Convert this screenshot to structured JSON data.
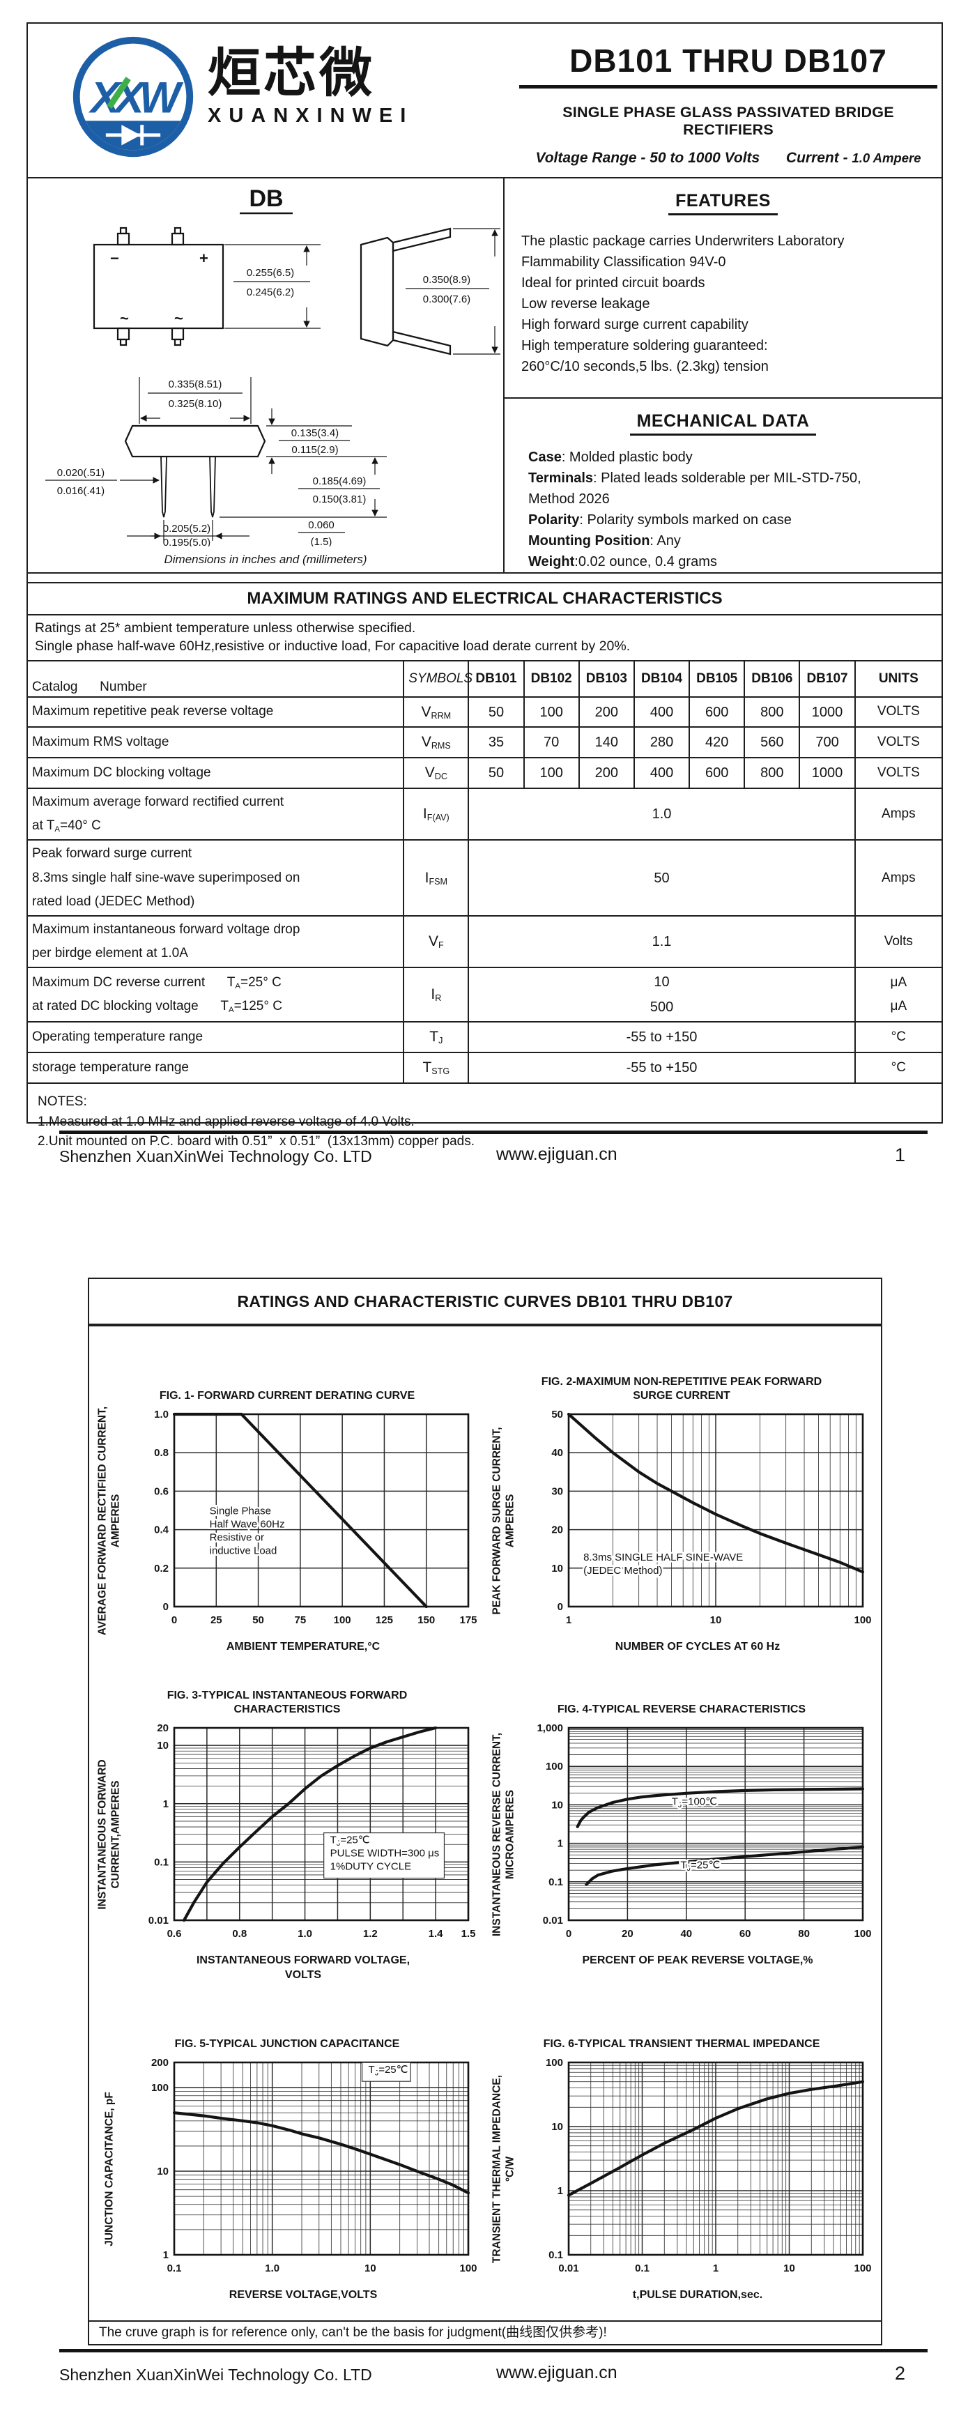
{
  "brand": {
    "blue": "#1d5fa7",
    "green": "#3fae49",
    "ink": "#141414"
  },
  "page1": {
    "header": {
      "logo_monogram": "XXW",
      "logo_chinese": "烜芯微",
      "logo_latin": "XUANXINWEI",
      "title": "DB101 THRU DB107",
      "subtitle": "SINGLE PHASE GLASS PASSIVATED BRIDGE RECTIFIERS",
      "range_left": "Voltage Range - 50 to 1000 Volts",
      "range_current_label": "Current -",
      "range_current_value": "1.0 Ampere"
    },
    "package": {
      "name": "DB",
      "caption": "Dimensions in inches and (millimeters)",
      "markings": {
        "minus": "−",
        "plus": "+",
        "ac_left": "~",
        "ac_right": "~"
      },
      "dims": {
        "body_height": [
          "0.255(6.5)",
          "0.245(6.2)"
        ],
        "lead_span_side": [
          "0.350(8.9)",
          "0.300(7.6)"
        ],
        "body_width": [
          "0.335(8.51)",
          "0.325(8.10)"
        ],
        "body_thickness": [
          "0.135(3.4)",
          "0.115(2.9)"
        ],
        "lead_length": [
          "0.185(4.69)",
          "0.150(3.81)"
        ],
        "lead_width": [
          "0.020(.51)",
          "0.016(.41)"
        ],
        "lead_pitch": [
          "0.205(5.2)",
          "0.195(5.0)"
        ],
        "standoff": [
          "0.060",
          "(1.5)"
        ]
      }
    },
    "features": {
      "title": "FEATURES",
      "lines": [
        "The plastic package carries Underwriters Laboratory",
        "Flammability Classification 94V-0",
        "Ideal for printed circuit boards",
        "Low reverse leakage",
        "High forward surge current capability",
        "High temperature soldering guaranteed:",
        "260°C/10 seconds,5 lbs. (2.3kg) tension"
      ]
    },
    "mechanical": {
      "title": "MECHANICAL DATA",
      "items": [
        {
          "b": "Case",
          "t": ": Molded plastic body"
        },
        {
          "b": "Terminals",
          "t": ": Plated leads solderable per MIL-STD-750,"
        },
        {
          "b": "",
          "t": " Method 2026"
        },
        {
          "b": "Polarity",
          "t": ": Polarity symbols marked on case"
        },
        {
          "b": "Mounting Position",
          "t": ": Any"
        },
        {
          "b": "Weight",
          "t": ":0.02 ounce, 0.4 grams"
        }
      ]
    },
    "ratings": {
      "title": "MAXIMUM RATINGS AND ELECTRICAL CHARACTERISTICS",
      "note1": "Ratings at 25* ambient temperature unless otherwise specified.",
      "note2": "Single phase half-wave 60Hz,resistive or inductive load, For capacitive load derate current by 20%.",
      "catalog_label": "Catalog      Number",
      "symbols_label": "SYMBOLS",
      "units_label": "UNITS",
      "devices": [
        "DB101",
        "DB102",
        "DB103",
        "DB104",
        "DB105",
        "DB106",
        "DB107"
      ],
      "rows": [
        {
          "param": [
            "Maximum repetitive peak reverse voltage"
          ],
          "symbol": "V~RRM~",
          "values": [
            "50",
            "100",
            "200",
            "400",
            "600",
            "800",
            "1000"
          ],
          "units": [
            "VOLTS"
          ]
        },
        {
          "param": [
            "Maximum RMS voltage"
          ],
          "symbol": "V~RMS~",
          "values": [
            "35",
            "70",
            "140",
            "280",
            "420",
            "560",
            "700"
          ],
          "units": [
            "VOLTS"
          ]
        },
        {
          "param": [
            "Maximum DC blocking voltage"
          ],
          "symbol": "V~DC~",
          "values": [
            "50",
            "100",
            "200",
            "400",
            "600",
            "800",
            "1000"
          ],
          "units": [
            "VOLTS"
          ]
        },
        {
          "param": [
            "Maximum average forward rectified current",
            "at T~A~=40° C"
          ],
          "symbol": "I~F(AV)~",
          "span": [
            "1.0"
          ],
          "units": [
            "Amps"
          ]
        },
        {
          "param": [
            "Peak forward surge current",
            "8.3ms single half sine-wave superimposed on",
            "rated load (JEDEC Method)"
          ],
          "symbol": "I~FSM~",
          "span": [
            "50"
          ],
          "units": [
            "Amps"
          ]
        },
        {
          "param": [
            "Maximum instantaneous forward voltage drop",
            "per birdge element at 1.0A"
          ],
          "symbol": "V~F~",
          "span": [
            "1.1"
          ],
          "units": [
            "Volts"
          ]
        },
        {
          "param": [
            "Maximum DC reverse current      T~A~=25° C",
            "at rated DC blocking voltage      T~A~=125° C"
          ],
          "symbol": "I~R~",
          "span": [
            "10",
            "500"
          ],
          "units": [
            "μA",
            "μA"
          ]
        },
        {
          "param": [
            "Operating temperature range"
          ],
          "symbol": "T~J~",
          "span": [
            "-55 to +150"
          ],
          "units": [
            "°C"
          ]
        },
        {
          "param": [
            "storage temperature range"
          ],
          "symbol": "T~STG~",
          "span": [
            "-55 to +150"
          ],
          "units": [
            "°C"
          ]
        }
      ]
    },
    "notes": {
      "title": "NOTES:",
      "items": [
        "1.Measured at 1.0 MHz and applied reverse voltage of 4.0 Volts.",
        "2.Unit mounted on P.C. board with 0.51”  x 0.51”  (13x13mm) copper pads."
      ]
    },
    "footer": {
      "company": "Shenzhen XuanXinWei Technology Co. LTD",
      "website": "www.ejiguan.cn",
      "page": "1"
    }
  },
  "page2": {
    "title": "RATINGS AND CHARACTERISTIC CURVES DB101 THRU DB107",
    "note": "The cruve graph is for reference only, can't be the basis for judgment(曲线图仅供参考)!",
    "footer": {
      "company": "Shenzhen XuanXinWei Technology Co. LTD",
      "website": "www.ejiguan.cn",
      "page": "2"
    }
  },
  "chart_data": [
    {
      "type": "line",
      "title": "FIG. 1- FORWARD CURRENT DERATING CURVE",
      "xlabel": "AMBIENT TEMPERATURE,°C",
      "ylabel": "AVERAGE FORWARD RECTIFIED CURRENT,\nAMPERES",
      "x_scale": "linear",
      "y_scale": "linear",
      "xlim": [
        0,
        175
      ],
      "ylim": [
        0,
        1.0
      ],
      "x_ticks": [
        0,
        25,
        50,
        75,
        100,
        125,
        150,
        175
      ],
      "x_tick_labels": [
        "0",
        "25",
        "50",
        "75",
        "100",
        "125",
        "150",
        "175"
      ],
      "y_ticks": [
        0,
        0.2,
        0.4,
        0.6,
        0.8,
        1.0
      ],
      "y_tick_labels": [
        "0",
        "0.2",
        "0.4",
        "0.6",
        "0.8",
        "1.0"
      ],
      "grid": true,
      "legend": "none",
      "series": [
        {
          "name": "derating",
          "points": [
            [
              0,
              1.0
            ],
            [
              40,
              1.0
            ],
            [
              150,
              0
            ]
          ]
        }
      ],
      "annotations": [
        {
          "x": 0.12,
          "y": 0.52,
          "lines": [
            "Single Phase",
            "Half Wave 60Hz",
            "Resistive or",
            "inductive Load"
          ]
        }
      ]
    },
    {
      "type": "line",
      "title": "FIG. 2-MAXIMUM NON-REPETITIVE PEAK FORWARD\nSURGE CURRENT",
      "xlabel": "NUMBER OF CYCLES AT 60 Hz",
      "ylabel": "PEAK  FORWARD SURGE CURRENT,\nAMPERES",
      "x_scale": "log",
      "y_scale": "linear",
      "xlim": [
        1,
        100
      ],
      "ylim": [
        0,
        50
      ],
      "x_ticks": [
        1,
        10,
        100
      ],
      "x_tick_labels": [
        "1",
        "10",
        "100"
      ],
      "y_ticks": [
        0,
        10,
        20,
        30,
        40,
        50
      ],
      "y_tick_labels": [
        "0",
        "10",
        "20",
        "30",
        "40",
        "50"
      ],
      "grid": true,
      "legend": "none",
      "series": [
        {
          "name": "surge",
          "points": [
            [
              1,
              50
            ],
            [
              1.5,
              44
            ],
            [
              2,
              40
            ],
            [
              3,
              35
            ],
            [
              4,
              32
            ],
            [
              5,
              30
            ],
            [
              7,
              27
            ],
            [
              10,
              24
            ],
            [
              15,
              21
            ],
            [
              20,
              19
            ],
            [
              30,
              16.5
            ],
            [
              50,
              13.5
            ],
            [
              70,
              11.5
            ],
            [
              100,
              9
            ]
          ]
        }
      ],
      "annotations": [
        {
          "x": 0.05,
          "y": 0.76,
          "lines": [
            "8.3ms SINGLE HALF SINE-WAVE",
            "(JEDEC Method)"
          ]
        }
      ]
    },
    {
      "type": "line",
      "title": "FIG. 3-TYPICAL INSTANTANEOUS FORWARD\nCHARACTERISTICS",
      "xlabel": "INSTANTANEOUS FORWARD VOLTAGE,\nVOLTS",
      "ylabel": "INSTANTANEOUS FORWARD\nCURRENT,AMPERES",
      "x_scale": "linear",
      "y_scale": "log",
      "xlim": [
        0.6,
        1.5
      ],
      "ylim": [
        0.01,
        20
      ],
      "x_ticks": [
        0.6,
        0.8,
        1.0,
        1.2,
        1.4,
        1.5
      ],
      "x_tick_labels": [
        "0.6",
        "0.8",
        "1.0",
        "1.2",
        "1.4",
        "1.5"
      ],
      "x_grid": [
        0.6,
        0.7,
        0.8,
        0.9,
        1.0,
        1.1,
        1.2,
        1.3,
        1.4,
        1.5
      ],
      "y_ticks": [
        0.01,
        0.1,
        1,
        10,
        20
      ],
      "y_tick_labels": [
        "0.01",
        "0.1",
        "1",
        "10",
        "20"
      ],
      "grid": true,
      "legend": "none",
      "series": [
        {
          "name": "vf",
          "points": [
            [
              0.63,
              0.01
            ],
            [
              0.66,
              0.02
            ],
            [
              0.7,
              0.045
            ],
            [
              0.75,
              0.095
            ],
            [
              0.8,
              0.18
            ],
            [
              0.85,
              0.33
            ],
            [
              0.9,
              0.6
            ],
            [
              0.95,
              1.0
            ],
            [
              1.0,
              1.8
            ],
            [
              1.05,
              3.0
            ],
            [
              1.1,
              4.5
            ],
            [
              1.15,
              6.5
            ],
            [
              1.2,
              9
            ],
            [
              1.25,
              11.5
            ],
            [
              1.3,
              14
            ],
            [
              1.35,
              17
            ],
            [
              1.4,
              20
            ]
          ]
        }
      ],
      "annotations": [
        {
          "x": 0.53,
          "y": 0.6,
          "boxed": true,
          "lines": [
            "T~J~=25℃",
            "PULSE WIDTH=300 μs",
            "1%DUTY CYCLE"
          ]
        }
      ]
    },
    {
      "type": "line",
      "title": "FIG. 4-TYPICAL REVERSE CHARACTERISTICS",
      "xlabel": "PERCENT OF PEAK REVERSE VOLTAGE,%",
      "ylabel": "INSTANTANEOUS REVERSE CURRENT,\nMICROAMPERES",
      "x_scale": "linear",
      "y_scale": "log",
      "xlim": [
        0,
        100
      ],
      "ylim": [
        0.01,
        1000
      ],
      "x_ticks": [
        0,
        20,
        40,
        60,
        80,
        100
      ],
      "x_tick_labels": [
        "0",
        "20",
        "40",
        "60",
        "80",
        "100"
      ],
      "y_ticks": [
        0.01,
        0.1,
        1,
        10,
        100,
        1000
      ],
      "y_tick_labels": [
        "0.01",
        "0.1",
        "1",
        "10",
        "100",
        "1,000"
      ],
      "grid": true,
      "legend": "inline",
      "series": [
        {
          "name": "TJ=100C",
          "points": [
            [
              3,
              2.7
            ],
            [
              4,
              3.8
            ],
            [
              5,
              4.7
            ],
            [
              7,
              6.5
            ],
            [
              10,
              8.5
            ],
            [
              15,
              11.5
            ],
            [
              20,
              14
            ],
            [
              25,
              16
            ],
            [
              30,
              17.5
            ],
            [
              40,
              20
            ],
            [
              50,
              22
            ],
            [
              60,
              23.5
            ],
            [
              70,
              24.5
            ],
            [
              80,
              25
            ],
            [
              90,
              25.5
            ],
            [
              100,
              26
            ]
          ]
        },
        {
          "name": "TJ=25C",
          "points": [
            [
              6,
              0.085
            ],
            [
              8,
              0.12
            ],
            [
              10,
              0.15
            ],
            [
              15,
              0.19
            ],
            [
              20,
              0.22
            ],
            [
              30,
              0.28
            ],
            [
              40,
              0.33
            ],
            [
              50,
              0.39
            ],
            [
              60,
              0.45
            ],
            [
              70,
              0.52
            ],
            [
              80,
              0.6
            ],
            [
              90,
              0.7
            ],
            [
              100,
              0.8
            ]
          ]
        }
      ],
      "annotations": [
        {
          "x": 0.35,
          "y": 0.4,
          "lines": [
            "T~J~=100℃"
          ]
        },
        {
          "x": 0.38,
          "y": 0.73,
          "lines": [
            "T~J~=25℃"
          ]
        }
      ]
    },
    {
      "type": "line",
      "title": "FIG. 5-TYPICAL JUNCTION CAPACITANCE",
      "xlabel": "REVERSE VOLTAGE,VOLTS",
      "ylabel": "JUNCTION CAPACITANCE, pF",
      "x_scale": "log",
      "y_scale": "log",
      "xlim": [
        0.1,
        100
      ],
      "ylim": [
        1,
        200
      ],
      "x_ticks": [
        0.1,
        1.0,
        10,
        100
      ],
      "x_tick_labels": [
        "0.1",
        "1.0",
        "10",
        "100"
      ],
      "y_ticks": [
        1,
        10,
        100,
        200
      ],
      "y_tick_labels": [
        "1",
        "10",
        "100",
        "200"
      ],
      "grid": true,
      "legend": "none",
      "series": [
        {
          "name": "cj",
          "points": [
            [
              0.1,
              50
            ],
            [
              0.2,
              46
            ],
            [
              0.3,
              43
            ],
            [
              0.5,
              40
            ],
            [
              0.7,
              38
            ],
            [
              1,
              35
            ],
            [
              1.5,
              31
            ],
            [
              2,
              28
            ],
            [
              3,
              25
            ],
            [
              5,
              21
            ],
            [
              7,
              18.5
            ],
            [
              10,
              16
            ],
            [
              15,
              13.5
            ],
            [
              20,
              12
            ],
            [
              30,
              10
            ],
            [
              50,
              8
            ],
            [
              70,
              6.8
            ],
            [
              100,
              5.5
            ]
          ]
        }
      ],
      "annotations": [
        {
          "x": 0.66,
          "y": 0.055,
          "boxed": true,
          "lines": [
            "T~J~=25℃"
          ]
        }
      ]
    },
    {
      "type": "line",
      "title": "FIG. 6-TYPICAL TRANSIENT THERMAL IMPEDANCE",
      "xlabel": "t,PULSE DURATION,sec.",
      "ylabel": "TRANSIENT THERMAL IMPEDANCE,\n°C/W",
      "x_scale": "log",
      "y_scale": "log",
      "xlim": [
        0.01,
        100
      ],
      "ylim": [
        0.1,
        100
      ],
      "x_ticks": [
        0.01,
        0.1,
        1,
        10,
        100
      ],
      "x_tick_labels": [
        "0.01",
        "0.1",
        "1",
        "10",
        "100"
      ],
      "y_ticks": [
        0.1,
        1,
        10,
        100
      ],
      "y_tick_labels": [
        "0.1",
        "1",
        "10",
        "100"
      ],
      "grid": true,
      "legend": "none",
      "series": [
        {
          "name": "zth",
          "points": [
            [
              0.01,
              0.85
            ],
            [
              0.02,
              1.3
            ],
            [
              0.05,
              2.3
            ],
            [
              0.1,
              3.6
            ],
            [
              0.2,
              5.5
            ],
            [
              0.5,
              9
            ],
            [
              1,
              13.5
            ],
            [
              2,
              19
            ],
            [
              5,
              27
            ],
            [
              10,
              33
            ],
            [
              20,
              38
            ],
            [
              50,
              44
            ],
            [
              100,
              50
            ]
          ]
        }
      ],
      "annotations": []
    }
  ]
}
